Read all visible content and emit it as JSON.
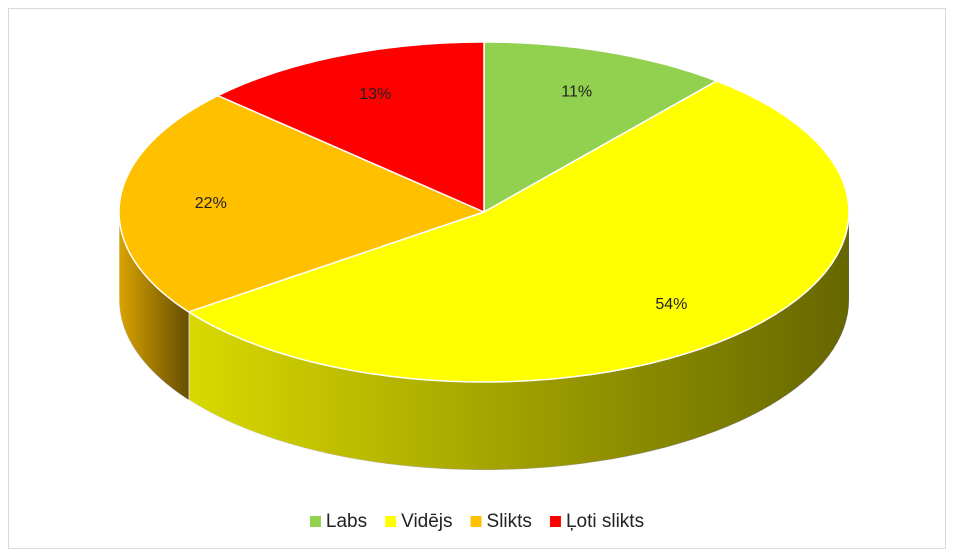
{
  "chart_data": {
    "type": "pie",
    "three_d": true,
    "categories": [
      "Labs",
      "Vidējs",
      "Slikts",
      "Ļoti slikts"
    ],
    "values": [
      11,
      54,
      22,
      13
    ],
    "value_labels": [
      "11%",
      "54%",
      "22%",
      "13%"
    ],
    "colors": [
      "#92d050",
      "#ffff00",
      "#ffc000",
      "#ff0000"
    ],
    "legend": "bottom"
  }
}
